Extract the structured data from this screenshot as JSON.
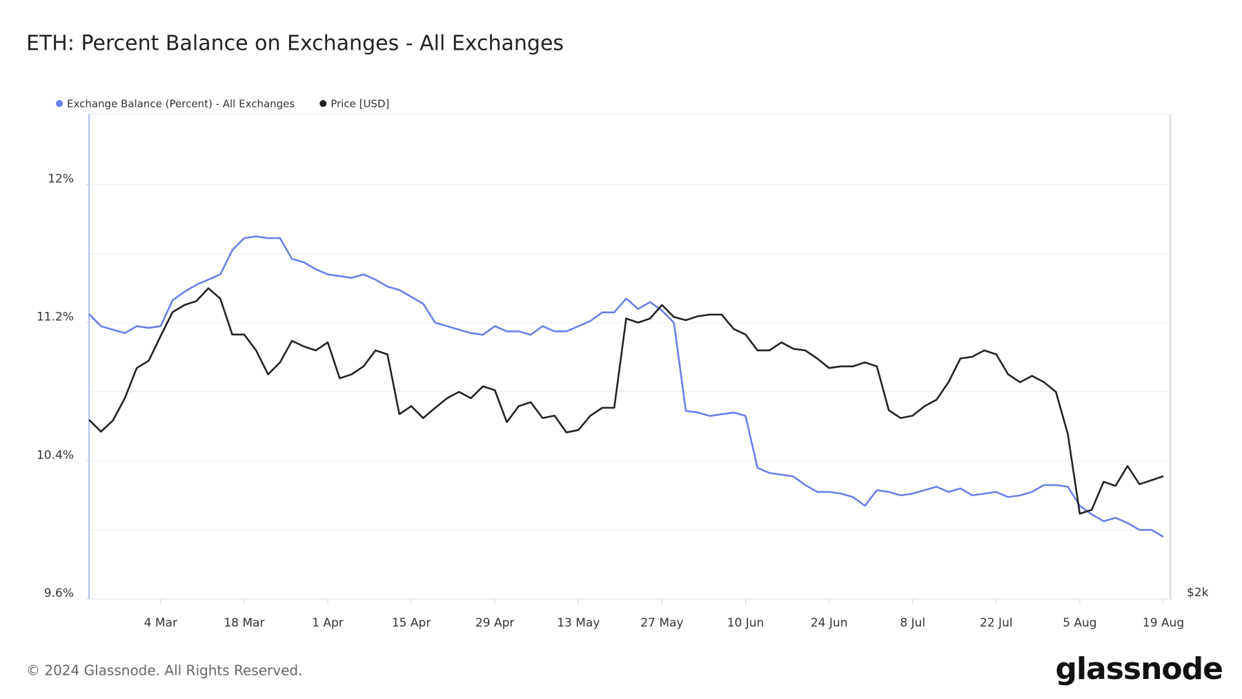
{
  "chart_data": {
    "type": "line",
    "title": "ETH: Percent Balance on Exchanges - All Exchanges",
    "categories": [
      null,
      null,
      null,
      null,
      null,
      null,
      "4 Mar",
      null,
      null,
      null,
      null,
      null,
      null,
      "18 Mar",
      null,
      null,
      null,
      null,
      null,
      null,
      "1 Apr",
      null,
      null,
      null,
      null,
      null,
      null,
      "15 Apr",
      null,
      null,
      null,
      null,
      null,
      null,
      "29 Apr",
      null,
      null,
      null,
      null,
      null,
      null,
      "13 May",
      null,
      null,
      null,
      null,
      null,
      null,
      "27 May",
      null,
      null,
      null,
      null,
      null,
      null,
      "10 Jun",
      null,
      null,
      null,
      null,
      null,
      null,
      "24 Jun",
      null,
      null,
      null,
      null,
      null,
      null,
      "8 Jul",
      null,
      null,
      null,
      null,
      null,
      null,
      "22 Jul",
      null,
      null,
      null,
      null,
      null,
      null,
      "5 Aug",
      null,
      null,
      null,
      null,
      null,
      null,
      "19 Aug"
    ],
    "series": [
      {
        "name": "Exchange Balance (Percent) - All Exchanges",
        "color": "#6a7fe8",
        "values": [
          11.25,
          11.18,
          11.16,
          11.14,
          11.18,
          11.17,
          11.18,
          11.33,
          11.38,
          11.42,
          11.45,
          11.48,
          11.62,
          11.69,
          11.7,
          11.69,
          11.69,
          11.57,
          11.55,
          11.51,
          11.48,
          11.47,
          11.46,
          11.48,
          11.45,
          11.41,
          11.39,
          11.35,
          11.31,
          11.2,
          11.18,
          11.16,
          11.14,
          11.13,
          11.18,
          11.15,
          11.15,
          11.13,
          11.18,
          11.15,
          11.15,
          11.18,
          11.21,
          11.26,
          11.26,
          11.34,
          11.28,
          11.32,
          11.27,
          11.2,
          10.69,
          10.68,
          10.66,
          10.67,
          10.68,
          10.66,
          10.36,
          10.33,
          10.32,
          10.31,
          10.26,
          10.22,
          10.22,
          10.21,
          10.19,
          10.14,
          10.23,
          10.22,
          10.2,
          10.21,
          10.23,
          10.25,
          10.22,
          10.24,
          10.2,
          10.21,
          10.22,
          10.19,
          10.2,
          10.22,
          10.26,
          10.26,
          10.25,
          10.14,
          10.09,
          10.05,
          10.07,
          10.04,
          10.0,
          10.0,
          9.96
        ]
      },
      {
        "name": "Price [USD]",
        "color": "#222222",
        "axis": "y2",
        "values": [
          3184,
          3105,
          3179,
          3326,
          3526,
          3574,
          3737,
          3895,
          3942,
          3968,
          4053,
          3984,
          3747,
          3747,
          3642,
          3484,
          3563,
          3705,
          3668,
          3642,
          3695,
          3458,
          3484,
          3537,
          3642,
          3616,
          3221,
          3274,
          3195,
          3263,
          3326,
          3368,
          3326,
          3405,
          3379,
          3168,
          3274,
          3300,
          3195,
          3211,
          3100,
          3116,
          3211,
          3263,
          3263,
          3853,
          3826,
          3853,
          3942,
          3863,
          3842,
          3868,
          3879,
          3879,
          3784,
          3747,
          3642,
          3642,
          3695,
          3653,
          3642,
          3589,
          3526,
          3537,
          3537,
          3563,
          3537,
          3247,
          3195,
          3211,
          3274,
          3316,
          3432,
          3589,
          3600,
          3642,
          3616,
          3484,
          3432,
          3474,
          3432,
          3368,
          3089,
          2563,
          2589,
          2774,
          2747,
          2879,
          2758,
          2784,
          2811
        ]
      }
    ],
    "ylim": [
      9.6,
      12.41
    ],
    "yticks": [
      {
        "value": 9.6,
        "label": "9.6%"
      },
      {
        "value": 10.4,
        "label": "10.4%"
      },
      {
        "value": 11.2,
        "label": "11.2%"
      },
      {
        "value": 12,
        "label": "12%"
      }
    ],
    "ygrid": [
      10.0,
      10.4,
      10.8,
      11.2,
      11.6,
      12.0
    ],
    "y2lim": [
      2000,
      5205
    ],
    "y2ticks": [
      {
        "value": 2000,
        "label": "$2k"
      }
    ],
    "grid": true,
    "legend": "top-left"
  },
  "copyright": "© 2024 Glassnode. All Rights Reserved.",
  "brand": "glassnode"
}
